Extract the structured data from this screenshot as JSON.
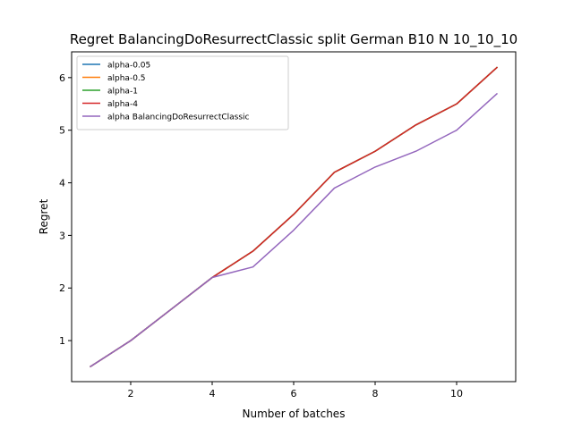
{
  "chart_data": {
    "type": "line",
    "title": "Regret BalancingDoResurrectClassic split German B10 N 10_10_10",
    "xlabel": "Number of batches",
    "ylabel": "Regret",
    "x": [
      1,
      2,
      3,
      4,
      5,
      6,
      7,
      8,
      9,
      10,
      11
    ],
    "xlim": [
      0.55,
      11.45
    ],
    "ylim": [
      0.22,
      6.49
    ],
    "xticks": [
      2,
      4,
      6,
      8,
      10
    ],
    "yticks": [
      1,
      2,
      3,
      4,
      5,
      6
    ],
    "grid": false,
    "legend_position": "top-left",
    "series": [
      {
        "name": "alpha-0.05",
        "color": "#1f77b4",
        "values": [
          0.5,
          1.0,
          1.6,
          2.2,
          2.7,
          3.4,
          4.2,
          4.6,
          5.1,
          5.5,
          6.2
        ]
      },
      {
        "name": "alpha-0.5",
        "color": "#ff7f0e",
        "values": [
          0.5,
          1.0,
          1.6,
          2.2,
          2.7,
          3.4,
          4.2,
          4.6,
          5.1,
          5.5,
          6.2
        ]
      },
      {
        "name": "alpha-1",
        "color": "#2ca02c",
        "values": [
          0.5,
          1.0,
          1.6,
          2.2,
          2.7,
          3.4,
          4.2,
          4.6,
          5.1,
          5.5,
          6.2
        ]
      },
      {
        "name": "alpha-4",
        "color": "#d62728",
        "values": [
          0.5,
          1.0,
          1.6,
          2.2,
          2.7,
          3.4,
          4.2,
          4.6,
          5.1,
          5.5,
          6.2
        ]
      },
      {
        "name": "alpha BalancingDoResurrectClassic",
        "color": "#9467bd",
        "values": [
          0.5,
          1.0,
          1.6,
          2.2,
          2.4,
          3.1,
          3.9,
          4.3,
          4.6,
          5.0,
          5.7
        ]
      }
    ]
  }
}
